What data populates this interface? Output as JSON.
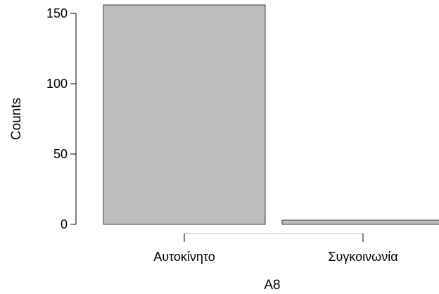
{
  "chart_data": {
    "type": "bar",
    "categories": [
      "Αυτοκίνητο",
      "Συγκοινωνία"
    ],
    "values": [
      156,
      3
    ],
    "xlabel": "A8",
    "ylabel": "Counts",
    "yticks": [
      0,
      50,
      100,
      150
    ],
    "ylim": [
      0,
      156
    ],
    "grid": false,
    "legend": "none",
    "colors": {
      "bar_fill": "#bebebe",
      "bar_stroke": "#3a3a3a",
      "axis": "#000000",
      "x_axis_line": "#bcbcbc"
    }
  }
}
